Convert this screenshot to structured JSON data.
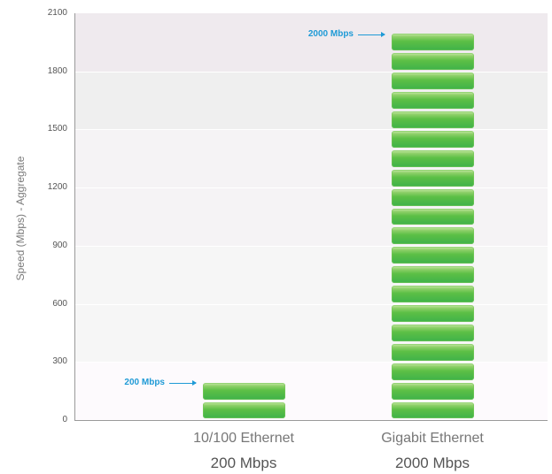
{
  "chart_data": {
    "type": "bar",
    "title": "",
    "xlabel": "",
    "ylabel": "Speed (Mbps) - Aggregate",
    "ylim": [
      0,
      2100
    ],
    "yticks": [
      "0",
      "300",
      "600",
      "900",
      "1200",
      "1500",
      "1800",
      "2100"
    ],
    "categories": [
      "10/100 Ethernet",
      "Gigabit Ethernet"
    ],
    "values": [
      200,
      2000
    ],
    "category_value_labels": [
      "200 Mbps",
      "2000 Mbps"
    ],
    "annotations": [
      {
        "text": "200 Mbps",
        "target": "10/100 Ethernet",
        "value": 200
      },
      {
        "text": "2000 Mbps",
        "target": "Gigabit Ethernet",
        "value": 2000
      }
    ],
    "block_unit_mbps": 100,
    "grid": true,
    "legend": "none",
    "colors": {
      "bar": "#4cb848",
      "annotation": "#1f9ad6",
      "axis": "#9a9a9a"
    }
  }
}
